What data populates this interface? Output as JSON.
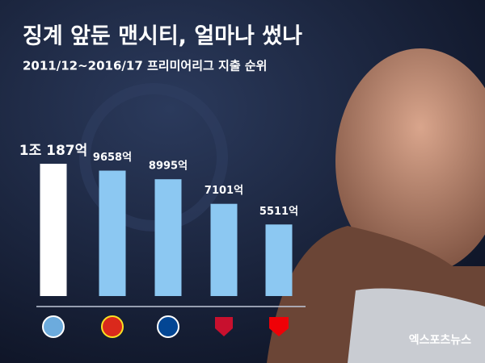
{
  "chart_data": {
    "type": "bar",
    "title": "징계 앞둔 맨시티, 얼마나 썼나",
    "subtitle": "2011/12~2016/17 프리미어리그 지출 순위",
    "categories": [
      null,
      null,
      null,
      null,
      null
    ],
    "values": [
      10187,
      9658,
      8995,
      7101,
      5511
    ],
    "value_labels": [
      "1조 187억",
      "9658억",
      "8995억",
      "7101억",
      "5511억"
    ],
    "colors": [
      "#ffffff",
      "#8cc8f2",
      "#8cc8f2",
      "#8cc8f2",
      "#8cc8f2"
    ],
    "watermark": "엑스포츠뉴스"
  }
}
